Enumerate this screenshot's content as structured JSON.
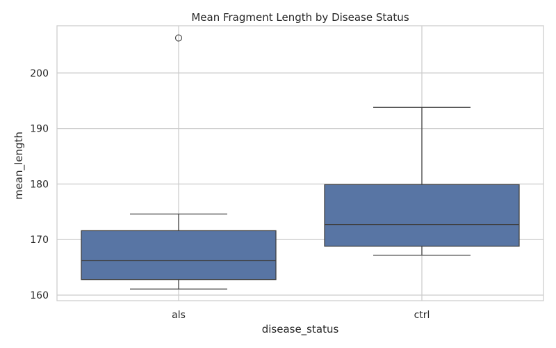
{
  "chart_data": {
    "type": "box",
    "title": "Mean Fragment Length by Disease Status",
    "xlabel": "disease_status",
    "ylabel": "mean_length",
    "ylim": [
      159,
      208.5
    ],
    "yticks": [
      160,
      170,
      180,
      190,
      200
    ],
    "grid": true,
    "box_color": "#5875a4",
    "line_color": "#3f3f3f",
    "grid_color": "#cccccc",
    "categories": [
      "als",
      "ctrl"
    ],
    "boxes": [
      {
        "category": "als",
        "whisker_low": 161.1,
        "q1": 162.8,
        "median": 166.2,
        "q3": 171.6,
        "whisker_high": 174.6,
        "outliers": [
          206.3
        ]
      },
      {
        "category": "ctrl",
        "whisker_low": 167.2,
        "q1": 168.8,
        "median": 172.7,
        "q3": 179.9,
        "whisker_high": 193.8,
        "outliers": []
      }
    ]
  }
}
